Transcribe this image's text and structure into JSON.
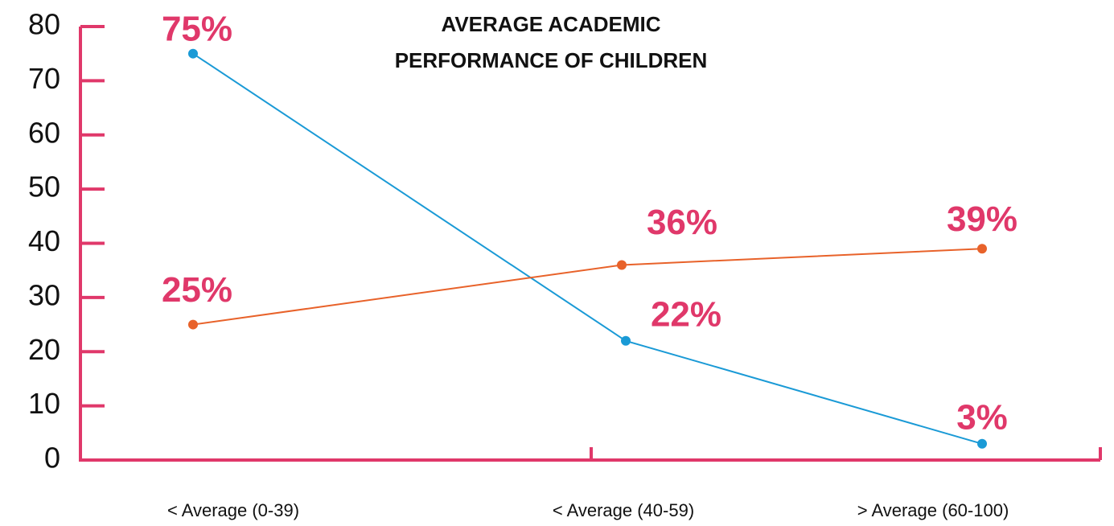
{
  "chart_data": {
    "type": "line",
    "title_lines": [
      "AVERAGE ACADEMIC",
      "PERFORMANCE OF CHILDREN"
    ],
    "categories": [
      "< Average (0-39)",
      "< Average (40-59)",
      "> Average (60-100)"
    ],
    "series": [
      {
        "color": "#1a9ad6",
        "values": [
          75,
          22,
          3
        ],
        "value_labels": [
          "75%",
          "22%",
          "3%"
        ]
      },
      {
        "color": "#e8622a",
        "values": [
          25,
          36,
          39
        ],
        "value_labels": [
          "25%",
          "36%",
          "39%"
        ]
      }
    ],
    "ylim": [
      0,
      80
    ],
    "yticks": [
      0,
      10,
      20,
      30,
      40,
      50,
      60,
      70,
      80
    ],
    "axis_color": "#e0386a"
  }
}
